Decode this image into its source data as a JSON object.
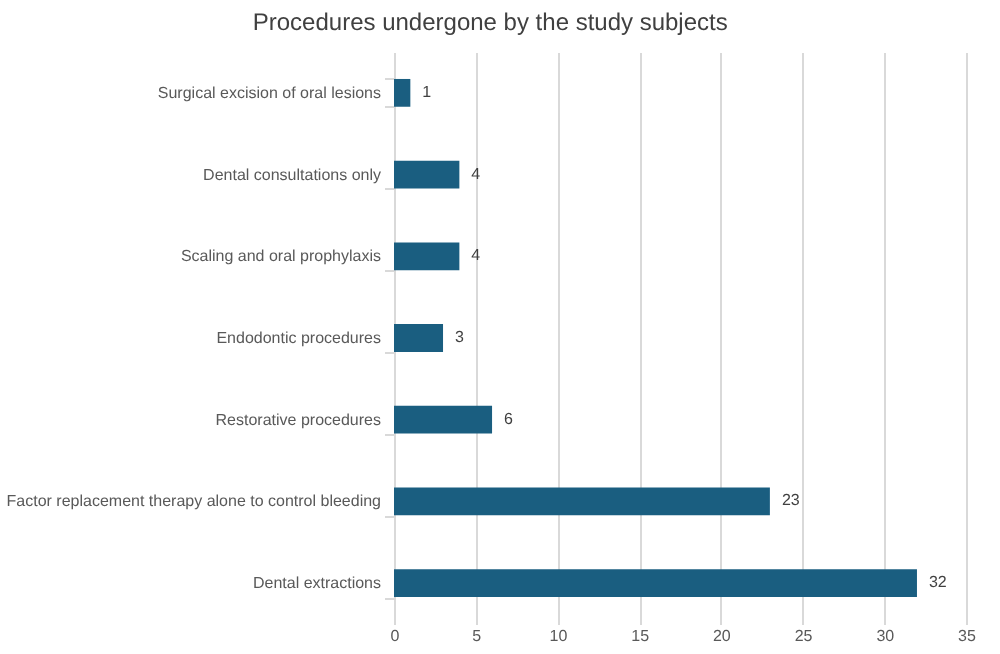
{
  "chart_data": {
    "type": "bar",
    "orientation": "horizontal",
    "title": "Procedures undergone by the study subjects",
    "categories": [
      "Surgical excision of oral lesions",
      "Dental consultations only",
      "Scaling and oral prophylaxis",
      "Endodontic procedures",
      "Restorative procedures",
      "Factor replacement therapy alone to control bleeding",
      "Dental extractions"
    ],
    "values": [
      1,
      4,
      4,
      3,
      6,
      23,
      32
    ],
    "color": "#1a5e80",
    "xlim": [
      0,
      35
    ],
    "xticks": [
      0,
      5,
      10,
      15,
      20,
      25,
      30,
      35
    ],
    "grid": "x",
    "data_labels": true
  }
}
